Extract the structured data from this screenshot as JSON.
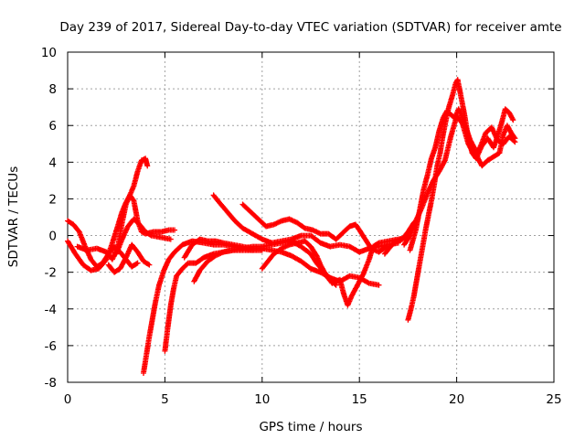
{
  "chart_data": {
    "type": "scatter",
    "title": "Day 239 of 2017, Sidereal Day-to-day VTEC variation (SDTVAR) for receiver amte",
    "xlabel": "GPS time / hours",
    "ylabel": "SDTVAR / TECUs",
    "xlim": [
      0,
      25
    ],
    "ylim": [
      -8,
      10
    ],
    "xticks": [
      "0",
      "5",
      "10",
      "15",
      "20",
      "25"
    ],
    "yticks": [
      "-8",
      "-6",
      "-4",
      "-2",
      "0",
      "2",
      "4",
      "6",
      "8",
      "10"
    ],
    "grid": true,
    "marker": "+",
    "color": "#ff0000",
    "series": [
      {
        "name": "s1",
        "points": [
          [
            0,
            0.8
          ],
          [
            0.3,
            0.6
          ],
          [
            0.6,
            0.2
          ],
          [
            0.9,
            -0.6
          ],
          [
            1.2,
            -1.3
          ],
          [
            1.5,
            -1.7
          ],
          [
            1.8,
            -1.5
          ],
          [
            2.1,
            -1.0
          ],
          [
            2.4,
            -0.6
          ],
          [
            2.7,
            -0.9
          ],
          [
            3.0,
            -1.3
          ],
          [
            3.3,
            -1.7
          ],
          [
            3.6,
            -1.5
          ]
        ]
      },
      {
        "name": "s2",
        "points": [
          [
            0,
            -0.3
          ],
          [
            0.4,
            -1.0
          ],
          [
            0.8,
            -1.6
          ],
          [
            1.2,
            -1.9
          ],
          [
            1.6,
            -1.8
          ],
          [
            2.0,
            -1.3
          ],
          [
            2.3,
            -0.4
          ],
          [
            2.6,
            0.6
          ],
          [
            2.8,
            1.3
          ],
          [
            3.0,
            1.8
          ],
          [
            3.2,
            2.2
          ],
          [
            3.4,
            2.7
          ],
          [
            3.6,
            3.5
          ],
          [
            3.8,
            4.1
          ],
          [
            4.0,
            4.2
          ],
          [
            4.1,
            3.8
          ]
        ]
      },
      {
        "name": "s3",
        "points": [
          [
            0.5,
            -0.6
          ],
          [
            1.0,
            -0.8
          ],
          [
            1.5,
            -0.7
          ],
          [
            2.0,
            -0.9
          ],
          [
            2.3,
            -1.3
          ],
          [
            2.6,
            -0.5
          ],
          [
            2.8,
            0.7
          ],
          [
            3.0,
            1.7
          ],
          [
            3.2,
            2.2
          ],
          [
            3.4,
            1.9
          ],
          [
            3.6,
            0.8
          ],
          [
            3.8,
            0.2
          ],
          [
            4.0,
            0.1
          ],
          [
            4.4,
            0.2
          ],
          [
            4.8,
            0.2
          ],
          [
            5.2,
            0.3
          ],
          [
            5.5,
            0.3
          ]
        ]
      },
      {
        "name": "s4",
        "points": [
          [
            2.5,
            -1.0
          ],
          [
            2.8,
            -0.2
          ],
          [
            3.1,
            0.5
          ],
          [
            3.4,
            0.9
          ],
          [
            3.7,
            0.6
          ],
          [
            4.0,
            0.2
          ],
          [
            4.3,
            0.0
          ],
          [
            4.8,
            -0.1
          ],
          [
            5.3,
            -0.2
          ]
        ]
      },
      {
        "name": "s5",
        "points": [
          [
            3.9,
            -7.5
          ],
          [
            4.05,
            -6.5
          ],
          [
            4.2,
            -5.5
          ],
          [
            4.35,
            -4.6
          ],
          [
            4.5,
            -3.7
          ],
          [
            4.7,
            -2.7
          ],
          [
            4.95,
            -1.9
          ],
          [
            5.2,
            -1.3
          ],
          [
            5.5,
            -0.9
          ],
          [
            5.9,
            -0.5
          ],
          [
            6.4,
            -0.3
          ],
          [
            7.0,
            -0.4
          ],
          [
            7.5,
            -0.5
          ],
          [
            8.0,
            -0.5
          ],
          [
            8.5,
            -0.6
          ],
          [
            9.0,
            -0.7
          ],
          [
            9.5,
            -0.8
          ]
        ]
      },
      {
        "name": "s6",
        "points": [
          [
            5.0,
            -6.3
          ],
          [
            5.15,
            -5.0
          ],
          [
            5.3,
            -3.8
          ],
          [
            5.45,
            -2.9
          ],
          [
            5.6,
            -2.2
          ],
          [
            5.9,
            -1.8
          ],
          [
            6.2,
            -1.5
          ],
          [
            6.6,
            -1.5
          ],
          [
            7.0,
            -1.2
          ],
          [
            7.5,
            -1.0
          ],
          [
            8.0,
            -0.9
          ],
          [
            8.5,
            -0.8
          ],
          [
            9.0,
            -0.8
          ],
          [
            9.5,
            -0.8
          ],
          [
            10.0,
            -0.8
          ]
        ]
      },
      {
        "name": "s7",
        "points": [
          [
            6.0,
            -1.2
          ],
          [
            6.4,
            -0.5
          ],
          [
            6.8,
            -0.2
          ],
          [
            7.2,
            -0.3
          ],
          [
            7.6,
            -0.3
          ],
          [
            8.0,
            -0.4
          ],
          [
            8.5,
            -0.5
          ],
          [
            9.0,
            -0.6
          ],
          [
            9.5,
            -0.7
          ],
          [
            10.0,
            -0.7
          ],
          [
            10.5,
            -0.8
          ],
          [
            11.0,
            -0.9
          ],
          [
            11.5,
            -1.1
          ],
          [
            12.0,
            -1.4
          ],
          [
            12.5,
            -1.8
          ],
          [
            13.0,
            -2.0
          ],
          [
            13.5,
            -2.3
          ],
          [
            14.0,
            -2.5
          ],
          [
            14.5,
            -2.2
          ],
          [
            15.0,
            -2.3
          ],
          [
            15.5,
            -2.6
          ],
          [
            16.0,
            -2.7
          ]
        ]
      },
      {
        "name": "s8",
        "points": [
          [
            6.5,
            -2.5
          ],
          [
            6.8,
            -1.9
          ],
          [
            7.2,
            -1.4
          ],
          [
            7.6,
            -1.1
          ],
          [
            8.0,
            -0.9
          ],
          [
            8.5,
            -0.8
          ],
          [
            9.0,
            -0.7
          ],
          [
            9.5,
            -0.6
          ],
          [
            10.0,
            -0.6
          ],
          [
            10.5,
            -0.5
          ],
          [
            11.0,
            -0.4
          ],
          [
            11.5,
            -0.3
          ],
          [
            12.0,
            -0.6
          ],
          [
            12.5,
            -1.0
          ],
          [
            12.8,
            -1.5
          ],
          [
            13.2,
            -2.0
          ],
          [
            13.5,
            -2.4
          ],
          [
            13.8,
            -2.7
          ]
        ]
      },
      {
        "name": "s9",
        "points": [
          [
            7.5,
            2.2
          ],
          [
            7.8,
            1.8
          ],
          [
            8.2,
            1.3
          ],
          [
            8.6,
            0.8
          ],
          [
            9.0,
            0.4
          ],
          [
            9.5,
            0.1
          ],
          [
            10.0,
            -0.2
          ],
          [
            10.5,
            -0.4
          ],
          [
            11.0,
            -0.3
          ],
          [
            11.5,
            -0.2
          ],
          [
            12.0,
            0.0
          ],
          [
            12.5,
            0.0
          ],
          [
            13.0,
            -0.4
          ],
          [
            13.5,
            -0.6
          ],
          [
            14.0,
            -0.5
          ],
          [
            14.5,
            -0.6
          ],
          [
            15.0,
            -0.9
          ],
          [
            15.5,
            -0.7
          ],
          [
            16.0,
            -0.6
          ],
          [
            16.5,
            -0.5
          ],
          [
            17.0,
            -0.4
          ]
        ]
      },
      {
        "name": "s10",
        "points": [
          [
            9.0,
            1.7
          ],
          [
            9.4,
            1.3
          ],
          [
            9.8,
            0.9
          ],
          [
            10.2,
            0.5
          ],
          [
            10.6,
            0.6
          ],
          [
            11.0,
            0.8
          ],
          [
            11.4,
            0.9
          ],
          [
            11.8,
            0.7
          ],
          [
            12.2,
            0.4
          ],
          [
            12.6,
            0.3
          ],
          [
            13.0,
            0.1
          ],
          [
            13.4,
            0.1
          ],
          [
            13.8,
            -0.2
          ],
          [
            14.2,
            0.2
          ],
          [
            14.5,
            0.5
          ],
          [
            14.8,
            0.6
          ],
          [
            15.0,
            0.3
          ],
          [
            15.3,
            -0.2
          ],
          [
            15.6,
            -0.7
          ],
          [
            16.0,
            -0.9
          ],
          [
            16.4,
            -0.6
          ]
        ]
      },
      {
        "name": "s11",
        "points": [
          [
            10.0,
            -1.8
          ],
          [
            10.3,
            -1.4
          ],
          [
            10.6,
            -1.0
          ],
          [
            11.0,
            -0.7
          ],
          [
            11.4,
            -0.5
          ],
          [
            11.8,
            -0.4
          ],
          [
            12.2,
            -0.3
          ],
          [
            12.5,
            -0.6
          ],
          [
            12.8,
            -1.1
          ],
          [
            13.0,
            -1.6
          ],
          [
            13.3,
            -2.2
          ],
          [
            13.6,
            -2.6
          ],
          [
            14.0,
            -2.4
          ],
          [
            14.2,
            -3.2
          ],
          [
            14.4,
            -3.8
          ],
          [
            14.6,
            -3.3
          ],
          [
            14.9,
            -2.7
          ],
          [
            15.2,
            -2.1
          ],
          [
            15.5,
            -1.3
          ],
          [
            15.7,
            -0.6
          ],
          [
            16.0,
            -0.4
          ],
          [
            16.5,
            -0.3
          ],
          [
            17.0,
            -0.2
          ],
          [
            17.5,
            -0.1
          ]
        ]
      },
      {
        "name": "s12",
        "points": [
          [
            17.5,
            -4.6
          ],
          [
            17.65,
            -4.0
          ],
          [
            17.8,
            -3.3
          ],
          [
            17.95,
            -2.4
          ],
          [
            18.1,
            -1.5
          ],
          [
            18.25,
            -0.6
          ],
          [
            18.4,
            0.3
          ],
          [
            18.55,
            1.1
          ],
          [
            18.7,
            1.9
          ],
          [
            18.85,
            2.8
          ],
          [
            19.0,
            3.8
          ],
          [
            19.15,
            4.5
          ],
          [
            19.3,
            5.5
          ],
          [
            19.45,
            6.3
          ],
          [
            19.6,
            7.0
          ],
          [
            19.8,
            7.7
          ],
          [
            19.95,
            8.3
          ],
          [
            20.05,
            8.5
          ],
          [
            20.2,
            7.7
          ],
          [
            20.4,
            6.6
          ],
          [
            20.6,
            5.3
          ],
          [
            20.8,
            4.5
          ],
          [
            21.0,
            4.2
          ],
          [
            21.3,
            4.9
          ],
          [
            21.6,
            5.3
          ],
          [
            21.9,
            4.8
          ],
          [
            22.1,
            5.4
          ],
          [
            22.3,
            6.1
          ],
          [
            22.5,
            6.9
          ],
          [
            22.7,
            6.7
          ],
          [
            22.9,
            6.3
          ]
        ]
      },
      {
        "name": "s13",
        "points": [
          [
            17.6,
            -0.8
          ],
          [
            17.9,
            0.3
          ],
          [
            18.1,
            1.4
          ],
          [
            18.3,
            2.5
          ],
          [
            18.5,
            3.3
          ],
          [
            18.7,
            4.2
          ],
          [
            18.9,
            4.8
          ],
          [
            19.1,
            5.7
          ],
          [
            19.3,
            6.4
          ],
          [
            19.5,
            6.8
          ],
          [
            19.7,
            6.6
          ],
          [
            19.9,
            6.4
          ],
          [
            20.1,
            6.9
          ],
          [
            20.3,
            6.4
          ],
          [
            20.5,
            5.8
          ],
          [
            20.7,
            5.2
          ],
          [
            20.9,
            4.8
          ],
          [
            21.1,
            4.2
          ],
          [
            21.3,
            3.8
          ],
          [
            21.6,
            4.1
          ],
          [
            21.9,
            4.3
          ],
          [
            22.2,
            4.5
          ],
          [
            22.4,
            5.5
          ],
          [
            22.6,
            6.0
          ],
          [
            22.8,
            5.6
          ],
          [
            23.0,
            5.3
          ]
        ]
      },
      {
        "name": "s14",
        "points": [
          [
            17.3,
            -0.5
          ],
          [
            17.6,
            0.0
          ],
          [
            17.9,
            0.8
          ],
          [
            18.2,
            1.5
          ],
          [
            18.5,
            2.3
          ],
          [
            18.8,
            3.0
          ],
          [
            19.1,
            3.5
          ],
          [
            19.4,
            4.1
          ],
          [
            19.7,
            5.4
          ],
          [
            20.0,
            6.5
          ],
          [
            20.3,
            6.1
          ],
          [
            20.6,
            5.0
          ],
          [
            20.9,
            4.4
          ],
          [
            21.2,
            4.8
          ],
          [
            21.5,
            5.6
          ],
          [
            21.8,
            5.9
          ],
          [
            22.1,
            5.2
          ],
          [
            22.4,
            5.0
          ],
          [
            22.7,
            5.4
          ],
          [
            23.0,
            5.1
          ]
        ]
      },
      {
        "name": "s15",
        "points": [
          [
            16.3,
            -1.0
          ],
          [
            16.6,
            -0.6
          ],
          [
            16.9,
            -0.3
          ],
          [
            17.2,
            -0.2
          ],
          [
            17.5,
            0.2
          ],
          [
            17.8,
            0.7
          ],
          [
            18.0,
            0.9
          ]
        ]
      },
      {
        "name": "s16",
        "points": [
          [
            2.1,
            -1.6
          ],
          [
            2.4,
            -2.0
          ],
          [
            2.7,
            -1.8
          ],
          [
            3.0,
            -1.2
          ],
          [
            3.3,
            -0.5
          ],
          [
            3.6,
            -0.9
          ],
          [
            3.9,
            -1.4
          ],
          [
            4.2,
            -1.6
          ]
        ]
      }
    ]
  }
}
